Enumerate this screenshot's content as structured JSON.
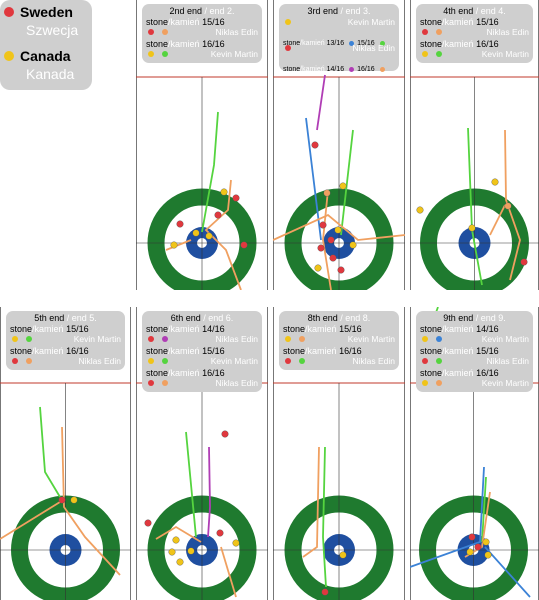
{
  "legend": {
    "teams": [
      {
        "name": "Sweden",
        "name_pl": "Szwecja",
        "color": "#e0383e"
      },
      {
        "name": "Canada",
        "name_pl": "Kanada",
        "color": "#f0c419"
      }
    ]
  },
  "colors": {
    "green": "#1f7a2f",
    "blue": "#1f4fa0",
    "button": "#ffffff",
    "hogline": "#c0392b",
    "green_path": "#55d43f",
    "orange_path": "#f0a060",
    "blue_path": "#3b82d6",
    "purple_path": "#b03db5"
  },
  "ends": [
    {
      "title": "2nd end",
      "title_pl": "end 2.",
      "shots": [
        {
          "label": "stone",
          "label_pl": "kamień",
          "num": "15/16",
          "team": "Niklas Edin",
          "dots": [
            "#e0383e",
            "#f0a060"
          ]
        },
        {
          "label": "stone",
          "label_pl": "kamień",
          "num": "16/16",
          "team": "Kevin Martin",
          "dots": [
            "#f0c419",
            "#55d43f"
          ]
        }
      ]
    },
    {
      "title": "3rd end",
      "title_pl": "end 3.",
      "shots": [
        {
          "label": "",
          "label_pl": "",
          "num": "",
          "team": "Kevin Martin",
          "dots": [
            "#f0c419"
          ]
        },
        {
          "label": "stone",
          "label_pl": "kamień",
          "num": "13/16",
          "team": "",
          "dots": [
            "#3b82d6"
          ],
          "extra": "15/16",
          "extra_dots": [
            "#55d43f"
          ]
        },
        {
          "label": "",
          "label_pl": "",
          "num": "",
          "team": "Niklas Edin",
          "dots": [
            "#e0383e"
          ]
        },
        {
          "label": "stone",
          "label_pl": "kamień",
          "num": "14/16",
          "team": "",
          "dots": [
            "#b03db5"
          ],
          "extra": "16/16",
          "extra_dots": [
            "#f0a060"
          ]
        }
      ]
    },
    {
      "title": "4th end",
      "title_pl": "end 4.",
      "shots": [
        {
          "label": "stone",
          "label_pl": "kamień",
          "num": "15/16",
          "team": "Niklas Edin",
          "dots": [
            "#e0383e",
            "#f0a060"
          ]
        },
        {
          "label": "stone",
          "label_pl": "kamień",
          "num": "16/16",
          "team": "Kevin Martin",
          "dots": [
            "#f0c419",
            "#55d43f"
          ]
        }
      ]
    },
    {
      "title": "5th end",
      "title_pl": "end 5.",
      "shots": [
        {
          "label": "stone",
          "label_pl": "kamień",
          "num": "15/16",
          "team": "Kevin Martin",
          "dots": [
            "#f0c419",
            "#55d43f"
          ]
        },
        {
          "label": "stone",
          "label_pl": "kamień",
          "num": "16/16",
          "team": "Niklas Edin",
          "dots": [
            "#e0383e",
            "#f0a060"
          ]
        }
      ]
    },
    {
      "title": "6th end",
      "title_pl": "end 6.",
      "shots": [
        {
          "label": "stone",
          "label_pl": "kamień",
          "num": "14/16",
          "team": "Niklas Edin",
          "dots": [
            "#e0383e",
            "#b03db5"
          ]
        },
        {
          "label": "stone",
          "label_pl": "kamień",
          "num": "15/16",
          "team": "Kevin Martin",
          "dots": [
            "#f0c419",
            "#55d43f"
          ]
        },
        {
          "label": "stone",
          "label_pl": "kamień",
          "num": "16/16",
          "team": "Niklas Edin",
          "dots": [
            "#e0383e",
            "#f0a060"
          ]
        }
      ]
    },
    {
      "title": "8th end",
      "title_pl": "end 8.",
      "shots": [
        {
          "label": "stone",
          "label_pl": "kamień",
          "num": "15/16",
          "team": "Kevin Martin",
          "dots": [
            "#f0c419",
            "#f0a060"
          ]
        },
        {
          "label": "stone",
          "label_pl": "kamień",
          "num": "16/16",
          "team": "Niklas Edin",
          "dots": [
            "#e0383e",
            "#55d43f"
          ]
        }
      ]
    },
    {
      "title": "9th end",
      "title_pl": "end 9.",
      "shots": [
        {
          "label": "stone",
          "label_pl": "kamień",
          "num": "14/16",
          "team": "Kevin Martin",
          "dots": [
            "#f0c419",
            "#3b82d6"
          ]
        },
        {
          "label": "stone",
          "label_pl": "kamień",
          "num": "15/16",
          "team": "Niklas Edin",
          "dots": [
            "#e0383e",
            "#55d43f"
          ]
        },
        {
          "label": "stone",
          "label_pl": "kamień",
          "num": "16/16",
          "team": "Kevin Martin",
          "dots": [
            "#f0c419",
            "#f0a060"
          ]
        }
      ]
    }
  ]
}
